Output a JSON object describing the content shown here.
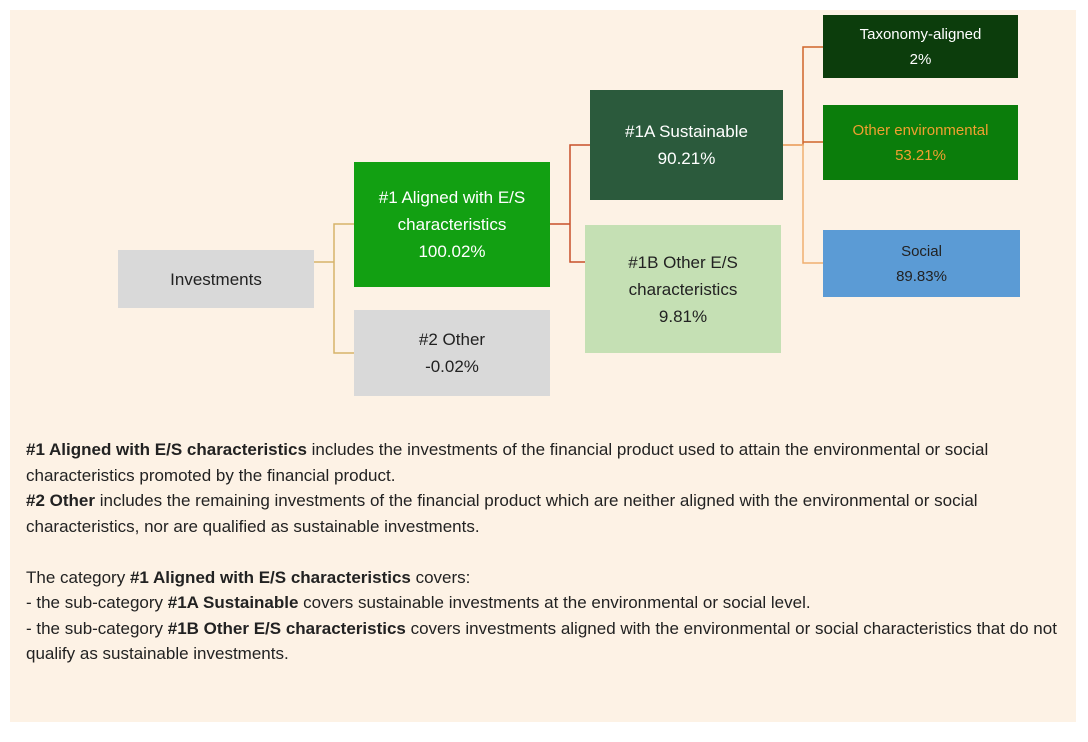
{
  "nodes": [
    {
      "label": "Investments"
    },
    {
      "label": "#1 Aligned with E/S characteristics",
      "value": "100.02%"
    },
    {
      "label": "#2 Other",
      "value": "-0.02%"
    },
    {
      "label": "#1A Sustainable",
      "value": "90.21%"
    },
    {
      "label": "#1B Other E/S characteristics",
      "value": "9.81%"
    },
    {
      "label": "Taxonomy-aligned",
      "value": "2%"
    },
    {
      "label": "Other environmental",
      "value": "53.21%"
    },
    {
      "label": "Social",
      "value": "89.83%"
    }
  ],
  "notes": [
    [
      {
        "text": "#1 Aligned with E/S characteristics",
        "bold": true
      },
      {
        "text": " includes the investments of the financial product used to attain the environmental or social characteristics promoted by the financial product."
      }
    ],
    [
      {
        "text": "#2 Other",
        "bold": true
      },
      {
        "text": " includes the remaining investments of the financial product which are neither aligned with the environmental or social characteristics, nor are qualified as sustainable investments."
      }
    ],
    [
      {
        "text": "The category "
      },
      {
        "text": "#1 Aligned with E/S characteristics",
        "bold": true
      },
      {
        "text": " covers:"
      }
    ],
    [
      {
        "text": "- the sub-category "
      },
      {
        "text": "#1A Sustainable",
        "bold": true
      },
      {
        "text": " covers sustainable investments at the environmental or social level."
      }
    ],
    [
      {
        "text": "- the sub-category "
      },
      {
        "text": "#1B Other E/S characteristics",
        "bold": true
      },
      {
        "text": " covers investments aligned with the environmental or social characteristics that do not qualify as sustainable investments."
      }
    ]
  ]
}
